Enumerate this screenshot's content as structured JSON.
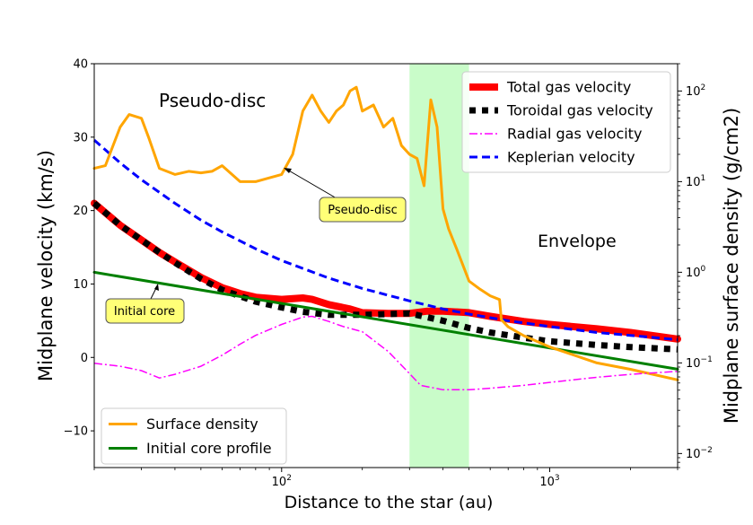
{
  "chart_data": {
    "type": "line",
    "xlabel": "Distance to the star (au)",
    "ylabel": "Midplane velocity (km/s)",
    "y2label": "Midplane surface density (g/cm2)",
    "x_scale": "log",
    "xlim": [
      20,
      3000
    ],
    "ylim": [
      -15,
      40
    ],
    "y2_scale": "log",
    "y2lim": [
      0.007,
      200
    ],
    "x_ticks": [
      {
        "value": 100,
        "base": "10",
        "exp": "2"
      },
      {
        "value": 1000,
        "base": "10",
        "exp": "3"
      }
    ],
    "y_ticks": [
      "−10",
      "0",
      "10",
      "20",
      "30",
      "40"
    ],
    "y_tick_values": [
      -10,
      0,
      10,
      20,
      30,
      40
    ],
    "y2_ticks": [
      {
        "value": 0.01,
        "base": "10",
        "exp": "−2"
      },
      {
        "value": 0.1,
        "base": "10",
        "exp": "−1"
      },
      {
        "value": 1,
        "base": "10",
        "exp": "0"
      },
      {
        "value": 10,
        "base": "10",
        "exp": "1"
      },
      {
        "value": 100,
        "base": "10",
        "exp": "2"
      }
    ],
    "shaded_band": {
      "x": [
        300,
        500
      ],
      "color": "#c9fcc9"
    },
    "series": [
      {
        "name": "Total gas velocity",
        "axis": "left",
        "color": "#ff0000",
        "style": "thick",
        "x": [
          20,
          25,
          30,
          35,
          40,
          50,
          60,
          70,
          80,
          100,
          120,
          130,
          150,
          180,
          200,
          250,
          300,
          350,
          400,
          500,
          600,
          800,
          1000,
          1500,
          2000,
          3000
        ],
        "y": [
          21,
          18,
          16,
          14.3,
          13,
          10.9,
          9.5,
          8.7,
          8.2,
          7.9,
          8.1,
          7.9,
          7.2,
          6.6,
          6.1,
          6.0,
          6.0,
          6.3,
          6.3,
          6.1,
          5.6,
          4.9,
          4.5,
          3.9,
          3.4,
          2.5
        ]
      },
      {
        "name": "Toroidal gas velocity",
        "axis": "left",
        "color": "#000000",
        "style": "dotted-thick",
        "x": [
          20,
          25,
          30,
          35,
          40,
          50,
          60,
          80,
          100,
          120,
          150,
          200,
          250,
          300,
          400,
          500,
          600,
          800,
          1000,
          1500,
          2000,
          3000
        ],
        "y": [
          21,
          18,
          16,
          14.3,
          12.9,
          10.7,
          9.2,
          7.6,
          6.8,
          6.2,
          5.8,
          5.8,
          5.9,
          6.0,
          5.0,
          4.0,
          3.4,
          2.7,
          2.2,
          1.7,
          1.4,
          1.1
        ]
      },
      {
        "name": "Radial gas velocity",
        "axis": "left",
        "color": "#ff00ff",
        "style": "dashdot",
        "x": [
          20,
          25,
          30,
          35,
          40,
          50,
          60,
          70,
          80,
          100,
          120,
          130,
          150,
          170,
          200,
          250,
          300,
          330,
          400,
          500,
          600,
          800,
          1000,
          1500,
          2000,
          3000
        ],
        "y": [
          -0.8,
          -1.2,
          -1.8,
          -2.8,
          -2.3,
          -1.2,
          0.3,
          1.8,
          3.0,
          4.5,
          5.5,
          5.6,
          4.9,
          4.2,
          3.5,
          0.8,
          -2.2,
          -3.8,
          -4.4,
          -4.4,
          -4.2,
          -3.8,
          -3.4,
          -2.7,
          -2.3,
          -1.9
        ]
      },
      {
        "name": "Keplerian velocity",
        "axis": "left",
        "color": "#0000ff",
        "style": "dashed",
        "x": [
          20,
          25,
          30,
          40,
          50,
          60,
          80,
          100,
          150,
          200,
          300,
          400,
          500,
          700,
          1000,
          1500,
          2000,
          3000
        ],
        "y": [
          29.6,
          26.5,
          24.2,
          21,
          18.7,
          17.1,
          14.8,
          13.2,
          10.8,
          9.4,
          7.7,
          6.6,
          5.9,
          5.0,
          4.2,
          3.4,
          3.0,
          2.4
        ]
      },
      {
        "name": "Surface density",
        "axis": "right",
        "color": "#ffa500",
        "style": "solid",
        "x": [
          20,
          22,
          25,
          27,
          30,
          32,
          35,
          40,
          45,
          50,
          55,
          60,
          70,
          80,
          90,
          100,
          110,
          120,
          130,
          140,
          150,
          160,
          170,
          180,
          190,
          200,
          220,
          240,
          260,
          280,
          300,
          320,
          340,
          360,
          380,
          400,
          420,
          450,
          500,
          550,
          600,
          650,
          660,
          700,
          800,
          1000,
          1500,
          2000,
          3000
        ],
        "y": [
          14,
          15,
          40,
          55,
          50,
          30,
          14,
          12,
          13,
          12.5,
          13,
          15,
          10,
          10,
          11,
          12,
          20,
          60,
          90,
          60,
          45,
          60,
          70,
          100,
          110,
          60,
          70,
          40,
          50,
          25,
          20,
          18,
          9,
          80,
          40,
          5,
          3,
          1.8,
          0.8,
          0.65,
          0.55,
          0.5,
          0.3,
          0.25,
          0.2,
          0.15,
          0.1,
          0.085,
          0.065
        ]
      },
      {
        "name": "Initial core profile",
        "axis": "left",
        "color": "#008000",
        "style": "solid",
        "x": [
          20,
          3000
        ],
        "y": [
          11.6,
          -1.6
        ]
      }
    ],
    "legend_upper": [
      "Total gas velocity",
      "Toroidal gas velocity",
      "Radial gas velocity",
      "Keplerian velocity"
    ],
    "legend_lower": [
      "Surface density",
      "Initial core profile"
    ],
    "annotations": {
      "pseudo_disc_title": "Pseudo-disc",
      "envelope_title": "Envelope",
      "pseudo_disc_box": "Pseudo-disc",
      "initial_core_box": "Initial core"
    }
  }
}
